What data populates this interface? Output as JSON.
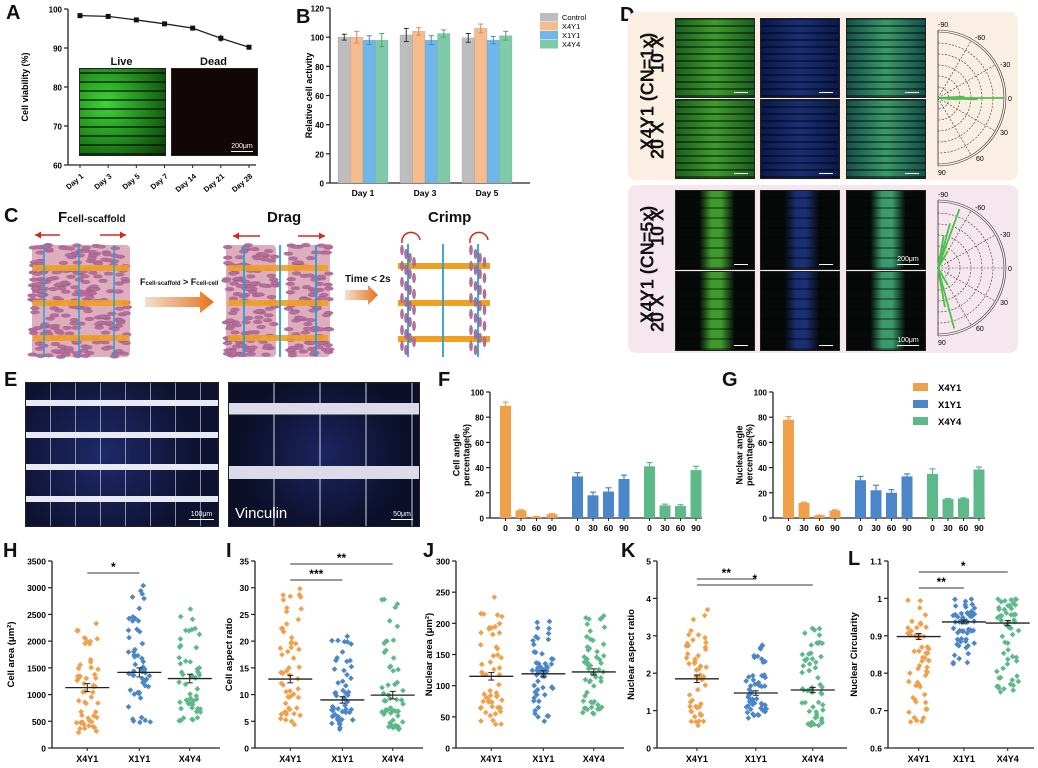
{
  "panels": {
    "A": "A",
    "B": "B",
    "C": "C",
    "D": "D",
    "E": "E",
    "F": "F",
    "G": "G",
    "H": "H",
    "I": "I",
    "J": "J",
    "K": "K",
    "L": "L"
  },
  "colors": {
    "X4Y1": "#F0A04B",
    "X1Y1": "#4A86C8",
    "X4Y4": "#5DB88A",
    "control_gray": "#BDBDBD",
    "b_X4Y1": "#F7BC8E",
    "b_X1Y1": "#6FB7EA",
    "b_X4Y4": "#7FCBA8",
    "live": "#2EC43A",
    "dead": "#E03A3A",
    "arrow_red": "#D6261E",
    "scaffold_orange": "#F0A020",
    "scaffold_blue": "#2A9FD0"
  },
  "panelA_images": {
    "live_label": "Live",
    "dead_label": "Dead",
    "scale": "200μm"
  },
  "panelC": {
    "title1": "F",
    "title1_sub": "cell-scaffold",
    "title2": "Drag",
    "title3": "Crimp",
    "arrow1_f1": "F",
    "arrow1_sub1": "cell-scaffold",
    "arrow1_op": " > ",
    "arrow1_f2": "F",
    "arrow1_sub2": "cell-cell",
    "arrow2_label": "Time < 2s"
  },
  "panelD": {
    "row_group1_line1": "X4Y1 (CN=1x)",
    "row_group1_a": "10 X",
    "row_group1_b": "20 X",
    "row_group2_line1": "X4Y1 (CN=5x)",
    "row_group2_a": "10 X",
    "row_group2_b": "20 X",
    "scale_200": "200μm",
    "scale_100": "100μm",
    "polar_labels": [
      "-90",
      "-60",
      "-30",
      "0",
      "30",
      "60",
      "90"
    ]
  },
  "panelE": {
    "scale1": "100μm",
    "scale2": "50μm",
    "stain_label": "Vinculin"
  },
  "chart_data": [
    {
      "id": "A",
      "type": "line",
      "title": "",
      "xlabel": "",
      "ylabel": "Cell viability (%)",
      "categories": [
        "Day 1",
        "Day 3",
        "Day 5",
        "Day 7",
        "Day 14",
        "Day 21",
        "Day 28"
      ],
      "values": [
        98.3,
        98.1,
        97.2,
        96.2,
        95.1,
        92.5,
        90.2
      ],
      "errors": [
        0.3,
        0.3,
        0.4,
        0.3,
        0.3,
        0.9,
        0.6
      ],
      "ylim": [
        60,
        100
      ],
      "yticks": [
        60,
        70,
        80,
        90,
        100
      ]
    },
    {
      "id": "B",
      "type": "bar",
      "ylabel": "Relative cell activity",
      "categories": [
        "Day 1",
        "Day 3",
        "Day 5"
      ],
      "series": [
        {
          "name": "Control",
          "values": [
            100,
            101.5,
            99.5
          ],
          "errors": [
            2,
            4.5,
            3
          ]
        },
        {
          "name": "X4Y1",
          "values": [
            100,
            104,
            106
          ],
          "errors": [
            4,
            2.5,
            3
          ]
        },
        {
          "name": "X1Y1",
          "values": [
            98,
            98,
            98
          ],
          "errors": [
            3,
            3,
            2.5
          ]
        },
        {
          "name": "X4Y4",
          "values": [
            98,
            102.5,
            101
          ],
          "errors": [
            4.5,
            2.5,
            3
          ]
        }
      ],
      "ylim": [
        0,
        120
      ],
      "yticks": [
        0,
        20,
        40,
        60,
        80,
        100,
        120
      ],
      "legend": "right"
    },
    {
      "id": "F",
      "type": "bar",
      "ylabel": "Cell angle percentage(%)",
      "groups": [
        "X4Y1",
        "X1Y1",
        "X4Y4"
      ],
      "categories": [
        "0",
        "30",
        "60",
        "90"
      ],
      "series": [
        {
          "name": "X4Y1",
          "values": [
            89,
            6,
            1,
            3
          ],
          "errors": [
            3,
            0.5,
            0.3,
            0.5
          ]
        },
        {
          "name": "X1Y1",
          "values": [
            33,
            18,
            21,
            31
          ],
          "errors": [
            3,
            2.5,
            3,
            3
          ]
        },
        {
          "name": "X4Y4",
          "values": [
            41,
            10,
            9.5,
            38
          ],
          "errors": [
            3,
            1,
            1,
            3
          ]
        }
      ],
      "ylim": [
        0,
        100
      ],
      "yticks": [
        0,
        20,
        40,
        60,
        80,
        100
      ]
    },
    {
      "id": "G",
      "type": "bar",
      "ylabel": "Nuclear angle percentage(%)",
      "groups": [
        "X4Y1",
        "X1Y1",
        "X4Y4"
      ],
      "categories": [
        "0",
        "30",
        "60",
        "90"
      ],
      "series": [
        {
          "name": "X4Y1",
          "values": [
            78,
            12,
            2,
            6
          ],
          "errors": [
            2.5,
            0.5,
            0.3,
            0.5
          ]
        },
        {
          "name": "X1Y1",
          "values": [
            30,
            22,
            20,
            33
          ],
          "errors": [
            3,
            4,
            2.5,
            2
          ]
        },
        {
          "name": "X4Y4",
          "values": [
            35,
            15,
            15.5,
            38.5
          ],
          "errors": [
            4,
            0.5,
            0.5,
            2
          ]
        }
      ],
      "ylim": [
        0,
        100
      ],
      "yticks": [
        0,
        20,
        40,
        60,
        80,
        100
      ],
      "legend": "top-right"
    },
    {
      "id": "H",
      "type": "scatter",
      "ylabel": "Cell area (μm²)",
      "categories": [
        "X4Y1",
        "X1Y1",
        "X4Y4"
      ],
      "means": [
        1130,
        1415,
        1300
      ],
      "sem": [
        75,
        85,
        80
      ],
      "ranges": [
        [
          290,
          2330
        ],
        [
          480,
          3040
        ],
        [
          510,
          2600
        ]
      ],
      "ylim": [
        0,
        3500
      ],
      "yticks": [
        0,
        500,
        1000,
        1500,
        2000,
        2500,
        3000,
        3500
      ],
      "significance": [
        {
          "from": 0,
          "to": 1,
          "label": "*"
        }
      ]
    },
    {
      "id": "I",
      "type": "scatter",
      "ylabel": "Cell aspect ratio",
      "categories": [
        "X4Y1",
        "X1Y1",
        "X4Y4"
      ],
      "means": [
        12.9,
        9.0,
        9.9
      ],
      "sem": [
        0.7,
        0.6,
        0.7
      ],
      "ranges": [
        [
          4.4,
          29.8
        ],
        [
          3.5,
          20.9
        ],
        [
          3.5,
          27.8
        ]
      ],
      "ylim": [
        0,
        35
      ],
      "yticks": [
        0,
        5,
        10,
        15,
        20,
        25,
        30,
        35
      ],
      "significance": [
        {
          "from": 0,
          "to": 1,
          "label": "***"
        },
        {
          "from": 0,
          "to": 2,
          "label": "**"
        }
      ]
    },
    {
      "id": "J",
      "type": "scatter",
      "ylabel": "Nuclear area (μm²)",
      "categories": [
        "X4Y1",
        "X1Y1",
        "X4Y4"
      ],
      "means": [
        115,
        119,
        122
      ],
      "sem": [
        6,
        5,
        5
      ],
      "ranges": [
        [
          38,
          242
        ],
        [
          43,
          203
        ],
        [
          55,
          212
        ]
      ],
      "ylim": [
        0,
        300
      ],
      "yticks": [
        0,
        50,
        100,
        150,
        200,
        250,
        300
      ],
      "significance": []
    },
    {
      "id": "K",
      "type": "scatter",
      "ylabel": "Nuclear aspect ratio",
      "categories": [
        "X4Y1",
        "X1Y1",
        "X4Y4"
      ],
      "means": [
        1.85,
        1.47,
        1.55
      ],
      "sem": [
        0.1,
        0.06,
        0.07
      ],
      "ranges": [
        [
          0.6,
          3.7
        ],
        [
          0.8,
          2.75
        ],
        [
          0.6,
          3.2
        ]
      ],
      "ylim": [
        0,
        5
      ],
      "yticks": [
        0,
        1,
        2,
        3,
        4,
        5
      ],
      "significance": [
        {
          "from": 0,
          "to": 1,
          "label": "**"
        },
        {
          "from": 0,
          "to": 2,
          "label": "*"
        }
      ]
    },
    {
      "id": "L",
      "type": "scatter",
      "ylabel": "Nuclear Circularity",
      "categories": [
        "X4Y1",
        "X1Y1",
        "X4Y4"
      ],
      "means": [
        0.898,
        0.937,
        0.934
      ],
      "sem": [
        0.008,
        0.005,
        0.007
      ],
      "ranges": [
        [
          0.67,
          0.995
        ],
        [
          0.825,
          0.998
        ],
        [
          0.75,
          0.998
        ]
      ],
      "ylim": [
        0.6,
        1.1
      ],
      "yticks": [
        0.6,
        0.7,
        0.8,
        0.9,
        1.0,
        1.1
      ],
      "significance": [
        {
          "from": 0,
          "to": 1,
          "label": "**"
        },
        {
          "from": 0,
          "to": 2,
          "label": "*"
        }
      ]
    }
  ]
}
